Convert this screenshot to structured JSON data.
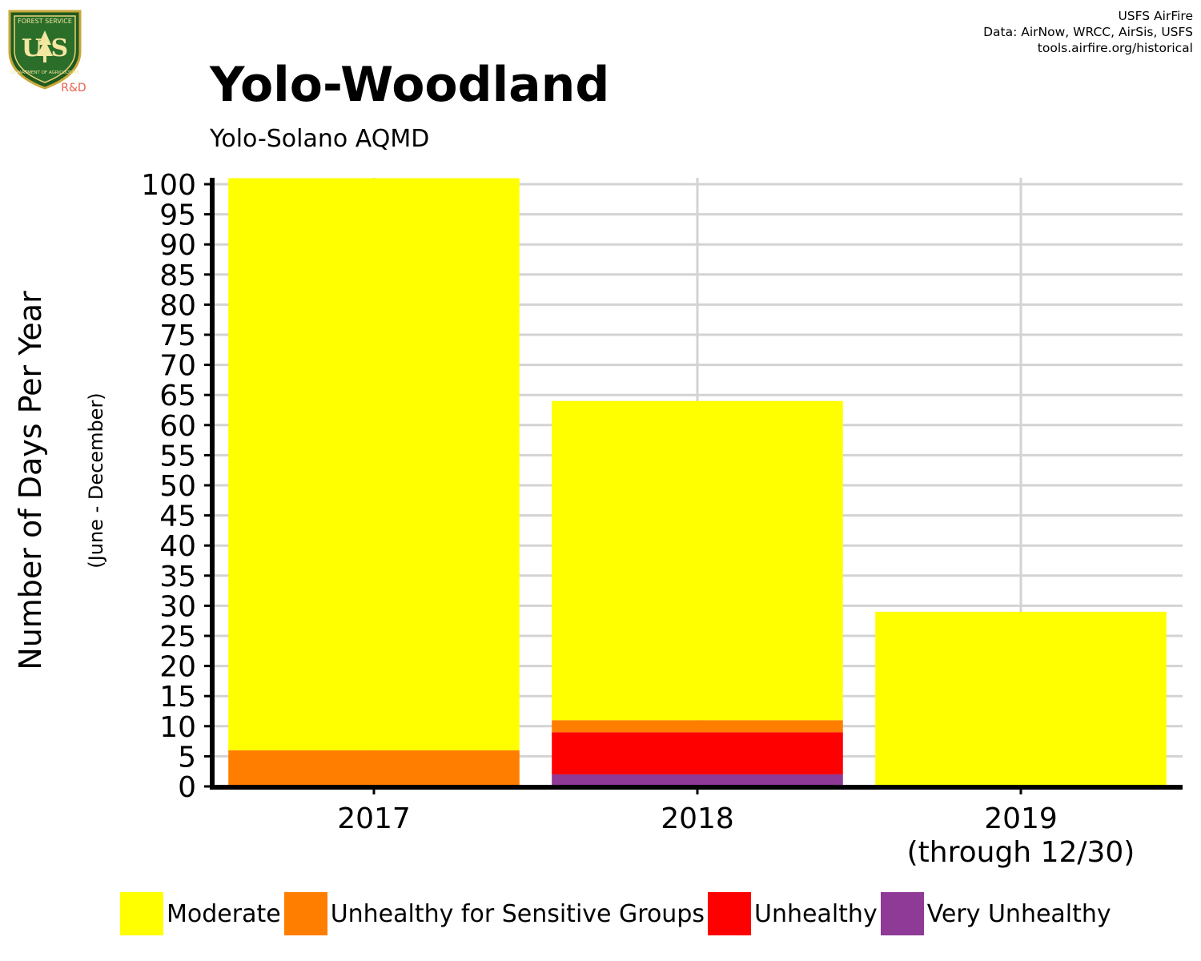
{
  "credits": {
    "line1": "USFS AirFire",
    "line2": "Data: AirNow, WRCC, AirSis, USFS",
    "line3": "tools.airfire.org/historical"
  },
  "logo": {
    "top_text": "FOREST SERVICE",
    "letters": "U S",
    "bottom_text": "DEPARTMENT OF AGRICULTURE",
    "badge": "R&D"
  },
  "chart_data": {
    "type": "bar",
    "stacked": true,
    "title": "Yolo-Woodland",
    "subtitle": "Yolo-Solano AQMD",
    "ylabel": "Number of Days Per Year",
    "ylabel_sub": "(June - December)",
    "xlabel": "",
    "categories": [
      [
        "2017"
      ],
      [
        "2018"
      ],
      [
        "2019",
        "(through 12/30)"
      ]
    ],
    "ylim": [
      0,
      100
    ],
    "yticks": [
      0,
      5,
      10,
      15,
      20,
      25,
      30,
      35,
      40,
      45,
      50,
      55,
      60,
      65,
      70,
      75,
      80,
      85,
      90,
      95,
      100
    ],
    "grid": true,
    "legend_position": "bottom",
    "series": [
      {
        "name": "Very Unhealthy",
        "color": "#8E3A96",
        "values": [
          0,
          2,
          0
        ]
      },
      {
        "name": "Unhealthy",
        "color": "#FF0000",
        "values": [
          0,
          7,
          0
        ]
      },
      {
        "name": "Unhealthy for Sensitive Groups",
        "color": "#FF7E00",
        "values": [
          6,
          2,
          0
        ]
      },
      {
        "name": "Moderate",
        "color": "#FFFF00",
        "values": [
          95,
          53,
          29
        ]
      }
    ],
    "legend_order": [
      "Moderate",
      "Unhealthy for Sensitive Groups",
      "Unhealthy",
      "Very Unhealthy"
    ]
  }
}
